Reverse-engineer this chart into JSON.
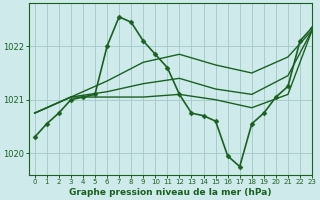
{
  "background_color": "#ceeaea",
  "grid_color": "#a8cccc",
  "line_color": "#1a6020",
  "title": "Graphe pression niveau de la mer (hPa)",
  "xlim": [
    -0.5,
    23
  ],
  "ylim": [
    1019.6,
    1022.8
  ],
  "yticks": [
    1020,
    1021,
    1022
  ],
  "xticks": [
    0,
    1,
    2,
    3,
    4,
    5,
    6,
    7,
    8,
    9,
    10,
    11,
    12,
    13,
    14,
    15,
    16,
    17,
    18,
    19,
    20,
    21,
    22,
    23
  ],
  "series": [
    {
      "x": [
        0,
        1,
        2,
        3,
        4,
        5,
        6,
        7,
        8,
        9,
        10,
        11,
        12,
        13,
        14,
        15,
        16,
        17,
        18,
        19,
        20,
        21,
        22,
        23
      ],
      "y": [
        1020.3,
        1020.55,
        1020.75,
        1021.0,
        1021.05,
        1021.1,
        1022.0,
        1022.55,
        1022.45,
        1022.1,
        1021.85,
        1021.6,
        1021.1,
        1020.75,
        1020.7,
        1020.6,
        1019.95,
        1019.75,
        1020.55,
        1020.75,
        1021.05,
        1021.25,
        1022.1,
        1022.35
      ],
      "marker": "D",
      "markersize": 2.5,
      "linewidth": 1.2
    },
    {
      "x": [
        0,
        3,
        6,
        9,
        12,
        15,
        18,
        21,
        23
      ],
      "y": [
        1020.75,
        1021.05,
        1021.05,
        1021.05,
        1021.1,
        1021.0,
        1020.85,
        1021.1,
        1022.3
      ],
      "marker": null,
      "markersize": 0,
      "linewidth": 1.0
    },
    {
      "x": [
        0,
        3,
        6,
        9,
        12,
        15,
        18,
        21,
        23
      ],
      "y": [
        1020.75,
        1021.05,
        1021.15,
        1021.3,
        1021.4,
        1021.2,
        1021.1,
        1021.45,
        1022.3
      ],
      "marker": null,
      "markersize": 0,
      "linewidth": 1.0
    },
    {
      "x": [
        0,
        3,
        6,
        9,
        12,
        15,
        18,
        21,
        23
      ],
      "y": [
        1020.75,
        1021.05,
        1021.35,
        1021.7,
        1021.85,
        1021.65,
        1021.5,
        1021.8,
        1022.3
      ],
      "marker": null,
      "markersize": 0,
      "linewidth": 1.0
    }
  ]
}
